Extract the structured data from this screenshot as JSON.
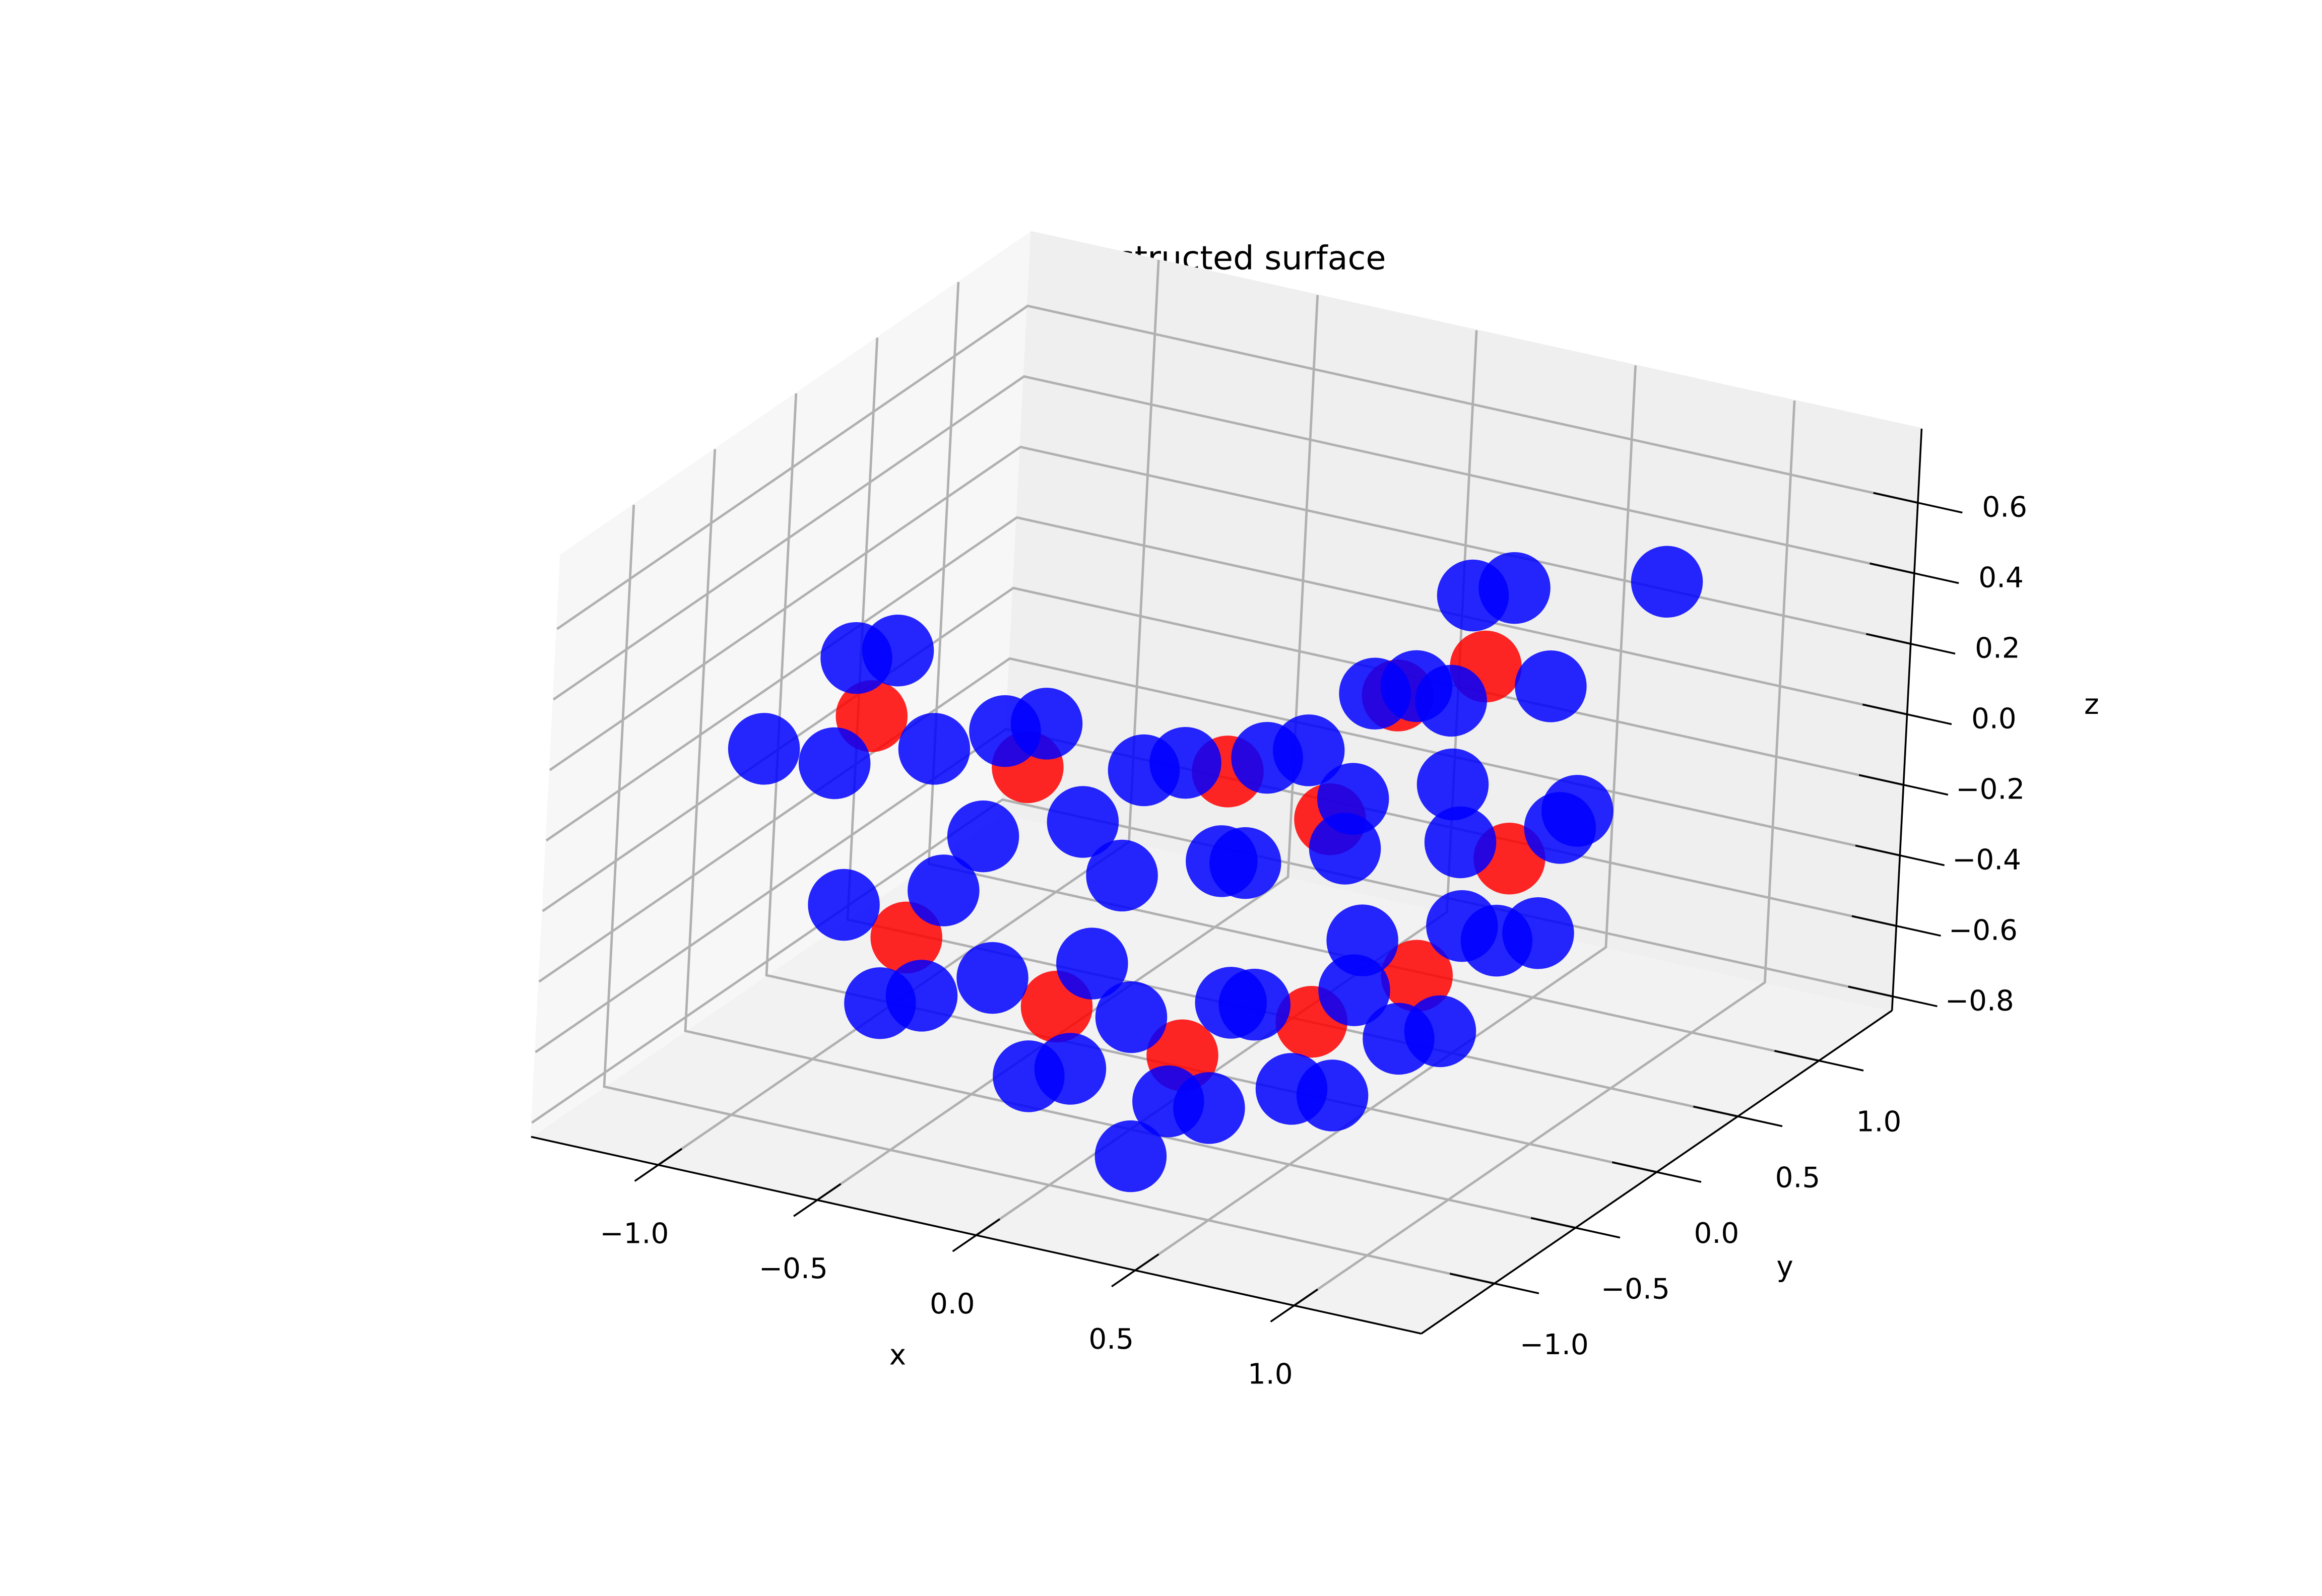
{
  "chart_data": {
    "type": "scatter3d",
    "title": "Reconstructed surface",
    "xlabel": "x",
    "ylabel": "y",
    "zlabel": "z",
    "xlim": [
      -1.4,
      1.4
    ],
    "ylim": [
      -1.45,
      1.45
    ],
    "zlim": [
      -0.84,
      0.81
    ],
    "xticks": [
      {
        "value": -1,
        "label": "−1.0"
      },
      {
        "value": -0.5,
        "label": "−0.5"
      },
      {
        "value": 0,
        "label": "0.0"
      },
      {
        "value": 0.5,
        "label": "0.5"
      },
      {
        "value": 1,
        "label": "1.0"
      }
    ],
    "yticks": [
      {
        "value": -1,
        "label": "−1.0"
      },
      {
        "value": -0.5,
        "label": "−0.5"
      },
      {
        "value": 0,
        "label": "0.0"
      },
      {
        "value": 0.5,
        "label": "0.5"
      },
      {
        "value": 1,
        "label": "1.0"
      }
    ],
    "zticks": [
      {
        "value": -0.8,
        "label": "−0.8"
      },
      {
        "value": -0.6,
        "label": "−0.6"
      },
      {
        "value": -0.4,
        "label": "−0.4"
      },
      {
        "value": -0.2,
        "label": "−0.2"
      },
      {
        "value": 0,
        "label": "0.0"
      },
      {
        "value": 0.2,
        "label": "0.2"
      },
      {
        "value": 0.4,
        "label": "0.4"
      },
      {
        "value": 0.6,
        "label": "0.6"
      }
    ],
    "grid": true,
    "series": [
      {
        "color": "#ff0000",
        "x": [
          -0.62,
          -0.88,
          -0.2,
          -0.45,
          0.15,
          0.1,
          0.4,
          0.45,
          0.55,
          0.3,
          0.6,
          0.35
        ],
        "y": [
          -0.72,
          -0.48,
          -0.6,
          -0.35,
          -0.5,
          -0.2,
          -0.2,
          -0.25,
          0.15,
          0.45,
          0.6,
          0.9
        ],
        "z": [
          -0.35,
          0.15,
          -0.5,
          0.05,
          -0.6,
          0.1,
          -0.55,
          0.05,
          -0.5,
          0.15,
          -0.3,
          0.1
        ]
      },
      {
        "color": "#0000ff",
        "x": [
          -0.4,
          -0.5,
          -0.75,
          -1.0,
          -1.1,
          -1.0,
          -0.75,
          -0.5,
          0.03,
          -0.07,
          -0.32,
          -0.57,
          -0.67,
          -0.57,
          -0.32,
          -0.07,
          0.39,
          0.29,
          0.04,
          -0.21,
          -0.31,
          -0.21,
          0.04,
          0.29,
          0.64,
          0.54,
          0.29,
          0.04,
          -0.06,
          0.04,
          0.29,
          0.54,
          0.78,
          0.68,
          0.43,
          0.18,
          0.08,
          0.18,
          0.43,
          0.68,
          0.85,
          0.75,
          0.5,
          0.25,
          0.15,
          0.25,
          0.5,
          0.75,
          -1.2,
          0.9,
          0.95,
          0.2
        ],
        "y": [
          -0.95,
          -0.85,
          -0.6,
          -0.35,
          -0.25,
          -0.35,
          -0.6,
          -0.85,
          -0.86,
          -0.76,
          -0.51,
          -0.26,
          -0.16,
          -0.26,
          -0.51,
          -0.76,
          -0.7,
          -0.6,
          -0.35,
          -0.1,
          0.0,
          -0.1,
          -0.35,
          -0.6,
          -0.43,
          -0.33,
          -0.08,
          0.17,
          0.27,
          0.17,
          -0.08,
          -0.33,
          -0.05,
          0.05,
          0.3,
          0.55,
          0.65,
          0.55,
          0.3,
          0.05,
          0.4,
          0.5,
          0.75,
          1.0,
          1.1,
          1.0,
          0.75,
          0.5,
          -0.5,
          0.9,
          0.3,
          -0.9
        ],
        "z": [
          -0.1,
          0.25,
          0.4,
          0.25,
          -0.1,
          -0.45,
          -0.6,
          -0.45,
          -0.25,
          0.1,
          0.25,
          0.1,
          -0.25,
          -0.6,
          -0.75,
          -0.6,
          -0.34,
          0.01,
          0.16,
          0.01,
          -0.34,
          -0.69,
          -0.8,
          -0.69,
          -0.34,
          0.01,
          0.16,
          0.01,
          -0.34,
          -0.69,
          -0.8,
          -0.69,
          -0.25,
          0.1,
          0.25,
          0.1,
          -0.25,
          -0.6,
          -0.75,
          -0.6,
          -0.1,
          0.25,
          0.4,
          0.25,
          -0.1,
          -0.45,
          -0.6,
          -0.45,
          0.0,
          0.45,
          0.0,
          -0.75
        ]
      }
    ]
  }
}
